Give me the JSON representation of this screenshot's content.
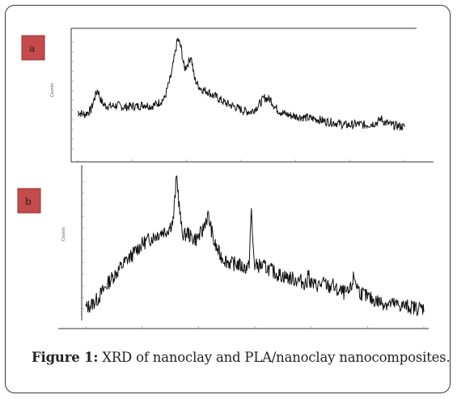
{
  "figure": {
    "caption_label": "Figure 1:",
    "caption_text": " XRD of nanoclay and PLA/nanoclay nanocomposites."
  },
  "chart_data": [
    {
      "type": "line",
      "panel_label": "a",
      "ylabel": "Counts",
      "x": [
        3,
        4,
        5,
        5.5,
        6,
        6.5,
        7,
        8,
        9,
        10,
        11,
        12,
        13,
        14,
        15,
        16,
        17,
        18,
        18.5,
        19,
        19.5,
        20,
        20.5,
        21,
        21.5,
        22,
        22.5,
        23,
        24,
        25,
        26,
        27,
        28,
        29,
        30,
        31,
        32,
        32.5,
        33,
        34,
        35,
        36,
        37,
        38,
        39,
        40,
        41,
        42,
        43,
        44,
        45,
        46,
        47,
        48,
        48.5,
        49,
        50,
        51,
        52
      ],
      "values": [
        500,
        470,
        520,
        640,
        740,
        620,
        570,
        560,
        570,
        550,
        560,
        560,
        580,
        560,
        590,
        640,
        880,
        1280,
        1190,
        960,
        1010,
        1100,
        860,
        790,
        750,
        730,
        720,
        690,
        650,
        600,
        570,
        540,
        510,
        500,
        560,
        650,
        630,
        560,
        520,
        480,
        460,
        450,
        440,
        430,
        420,
        400,
        390,
        380,
        360,
        360,
        370,
        360,
        370,
        390,
        430,
        390,
        360,
        350,
        340
      ],
      "xlim": [
        3,
        52
      ],
      "ylim": [
        0,
        1350
      ]
    },
    {
      "type": "line",
      "panel_label": "b",
      "ylabel": "Counts",
      "x": [
        2,
        3,
        4,
        5,
        6,
        7,
        8,
        9,
        10,
        11,
        12,
        13,
        14,
        15,
        16,
        17,
        17.3,
        17.6,
        18,
        18.5,
        19,
        19.5,
        20,
        21,
        22,
        22.5,
        23,
        23.5,
        24,
        25,
        26,
        27,
        28,
        29,
        30,
        30.2,
        30.4,
        30.7,
        31,
        32,
        33,
        34,
        35,
        36,
        37,
        38,
        39,
        40,
        40.2,
        40.5,
        41,
        42,
        43,
        44,
        44.2,
        44.5,
        45,
        46,
        47,
        47.5,
        48,
        48.5,
        49,
        50,
        51,
        52,
        53,
        54,
        55,
        56,
        57,
        58,
        59,
        60
      ],
      "values": [
        70,
        90,
        120,
        170,
        220,
        260,
        300,
        340,
        370,
        410,
        440,
        460,
        480,
        500,
        510,
        560,
        690,
        820,
        660,
        500,
        480,
        500,
        470,
        460,
        500,
        560,
        590,
        520,
        440,
        370,
        340,
        320,
        320,
        300,
        300,
        470,
        620,
        420,
        310,
        310,
        300,
        280,
        260,
        250,
        240,
        230,
        220,
        210,
        280,
        220,
        200,
        200,
        210,
        180,
        230,
        190,
        170,
        160,
        150,
        180,
        250,
        200,
        160,
        140,
        120,
        110,
        100,
        95,
        90,
        85,
        80,
        75,
        70,
        70
      ],
      "xlim": [
        2,
        60
      ],
      "ylim": [
        0,
        850
      ]
    }
  ]
}
